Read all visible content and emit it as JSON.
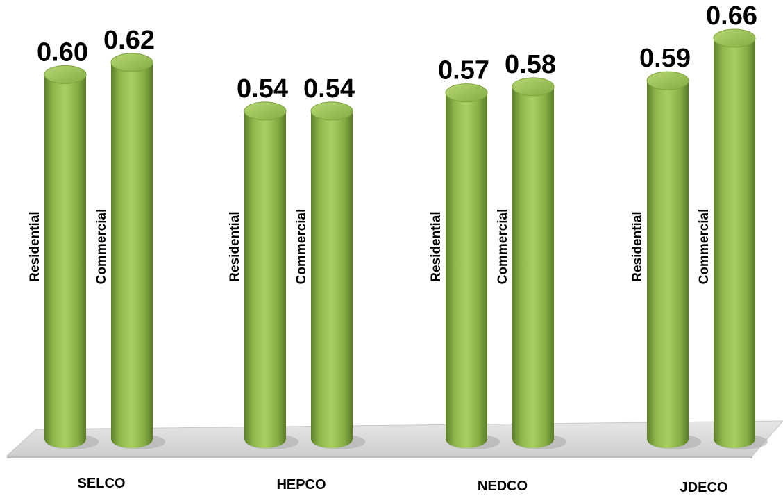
{
  "chart_data": {
    "type": "bar",
    "style": "3d-cylinder",
    "categories": [
      "SELCO",
      "HEPCO",
      "NEDCO",
      "JDECO"
    ],
    "bar_labels": [
      "Residential",
      "Commercial"
    ],
    "values": [
      [
        0.6,
        0.62
      ],
      [
        0.54,
        0.54
      ],
      [
        0.57,
        0.58
      ],
      [
        0.59,
        0.66
      ]
    ],
    "value_labels": [
      [
        "0.60",
        "0.62"
      ],
      [
        "0.54",
        "0.54"
      ],
      [
        "0.57",
        "0.58"
      ],
      [
        "0.59",
        "0.66"
      ]
    ],
    "bar_color": "#8db64a",
    "floor_color": "#d9d9d9",
    "grid": false,
    "legend": "none",
    "title": "",
    "xlabel": "",
    "ylabel": ""
  }
}
